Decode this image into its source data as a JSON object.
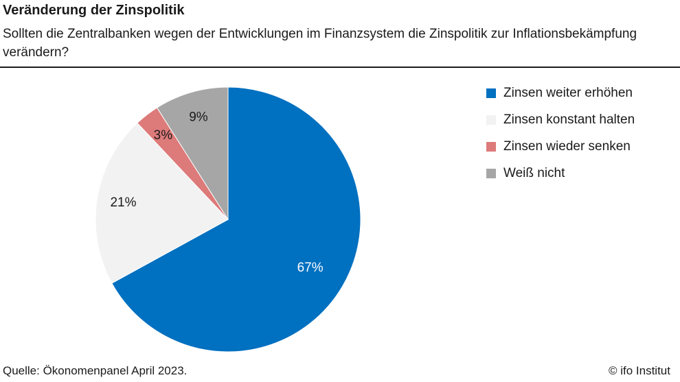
{
  "header": {
    "title": "Veränderung der Zinspolitik",
    "subtitle": "Sollten die Zentralbanken wegen der Entwicklungen im Finanzsystem die Zinspolitik zur Inflationsbekämpfung verändern?"
  },
  "chart_data": {
    "type": "pie",
    "title": "Veränderung der Zinspolitik",
    "legend_position": "right",
    "slices": [
      {
        "label": "Zinsen weiter erhöhen",
        "value": 67,
        "value_label": "67%",
        "color": "#0070C0",
        "label_color": "#ffffff"
      },
      {
        "label": "Zinsen konstant halten",
        "value": 21,
        "value_label": "21%",
        "color": "#F2F2F2",
        "label_color": "#1a1a1a"
      },
      {
        "label": "Zinsen wieder senken",
        "value": 3,
        "value_label": "3%",
        "color": "#DD7A7A",
        "label_color": "#1a1a1a"
      },
      {
        "label": "Weiß nicht",
        "value": 9,
        "value_label": "9%",
        "color": "#A6A6A6",
        "label_color": "#1a1a1a"
      }
    ]
  },
  "footer": {
    "source": "Quelle: Ökonomenpanel April 2023.",
    "credit": "© ifo Institut"
  }
}
